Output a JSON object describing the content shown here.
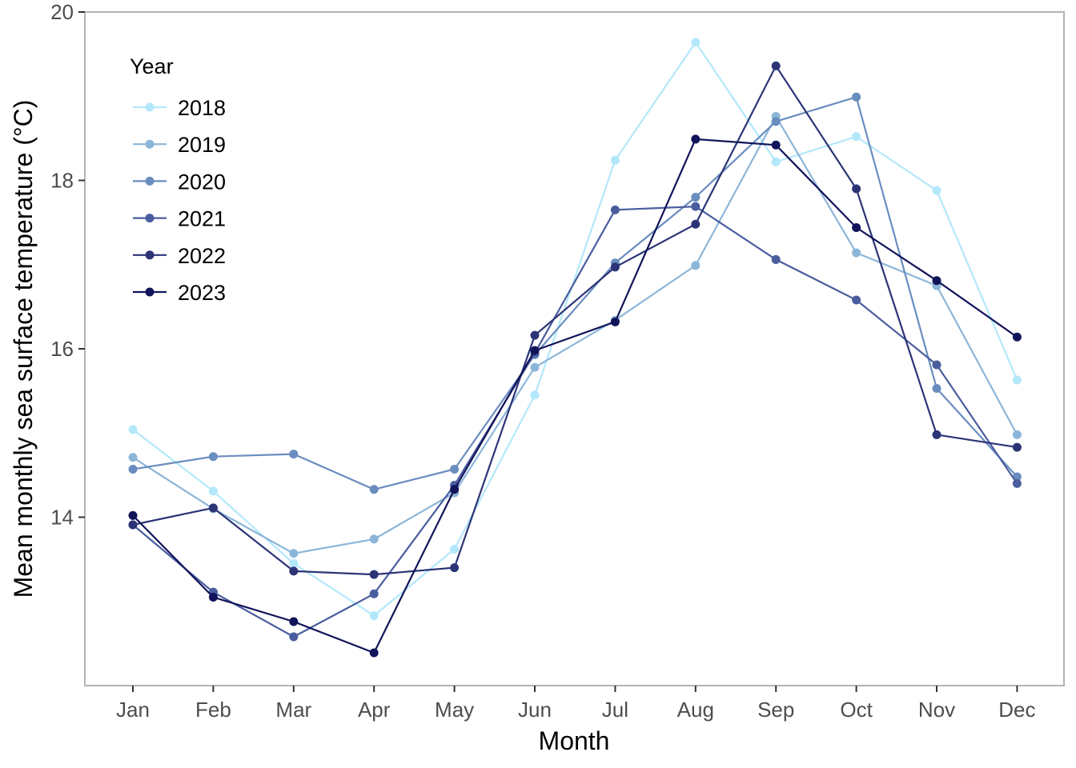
{
  "chart_data": {
    "type": "line",
    "title": "",
    "xlabel": "Month",
    "ylabel": "Mean monthly sea surface temperature (°C)",
    "categories": [
      "Jan",
      "Feb",
      "Mar",
      "Apr",
      "May",
      "Jun",
      "Jul",
      "Aug",
      "Sep",
      "Oct",
      "Nov",
      "Dec"
    ],
    "ylim": [
      12.0,
      20.0
    ],
    "yticks": [
      14,
      16,
      18,
      20
    ],
    "grid": false,
    "legend_title": "Year",
    "legend_position": "top-left",
    "series": [
      {
        "name": "2018",
        "color": "#b3e8fb",
        "values": [
          15.04,
          14.31,
          13.45,
          12.83,
          13.62,
          15.45,
          18.24,
          19.64,
          18.22,
          18.52,
          17.88,
          15.63
        ]
      },
      {
        "name": "2019",
        "color": "#8cb6d9",
        "values": [
          14.71,
          14.1,
          13.57,
          13.74,
          14.29,
          15.78,
          16.34,
          16.99,
          18.76,
          17.14,
          16.75,
          14.98
        ]
      },
      {
        "name": "2020",
        "color": "#6a8dbf",
        "values": [
          14.57,
          14.72,
          14.75,
          14.33,
          14.57,
          15.93,
          17.02,
          17.8,
          18.7,
          18.99,
          15.53,
          14.48
        ]
      },
      {
        "name": "2021",
        "color": "#4a5d9e",
        "values": [
          13.91,
          13.11,
          12.58,
          13.09,
          14.38,
          15.95,
          17.65,
          17.69,
          17.06,
          16.58,
          15.81,
          14.4
        ]
      },
      {
        "name": "2022",
        "color": "#2c3476",
        "values": [
          13.91,
          14.11,
          13.36,
          13.32,
          13.4,
          16.16,
          16.97,
          17.48,
          19.36,
          17.9,
          14.98,
          14.83
        ]
      },
      {
        "name": "2023",
        "color": "#12145a",
        "values": [
          14.02,
          13.05,
          12.76,
          12.39,
          14.33,
          15.98,
          16.32,
          18.49,
          18.42,
          17.44,
          16.81,
          16.14
        ]
      }
    ]
  }
}
